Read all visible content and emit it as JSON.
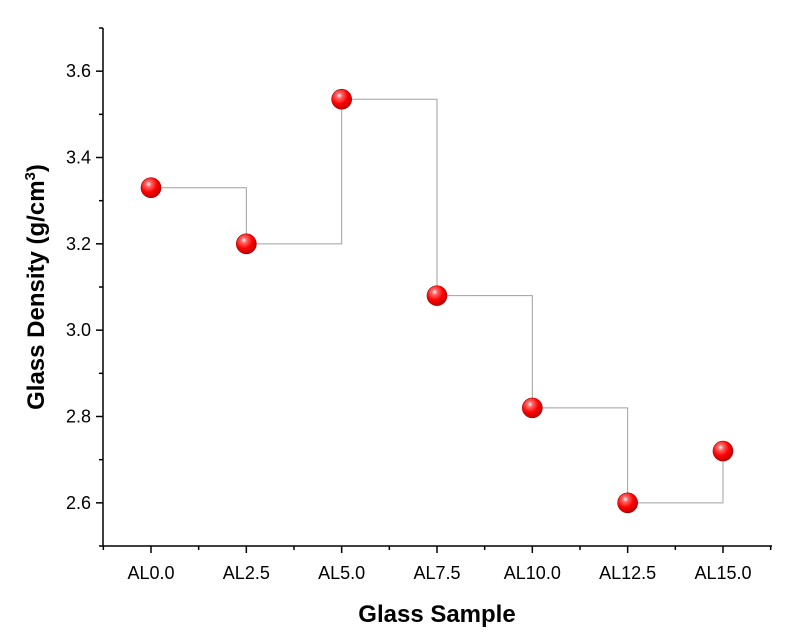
{
  "chart_data": {
    "type": "scatter",
    "categories": [
      "AL0.0",
      "AL2.5",
      "AL5.0",
      "AL7.5",
      "AL10.0",
      "AL12.5",
      "AL15.0"
    ],
    "values": [
      3.33,
      3.2,
      3.535,
      3.08,
      2.82,
      2.6,
      2.72
    ],
    "step_line": true,
    "xlabel": "Glass Sample",
    "ylabel_main": "Glass Density (g/cm",
    "ylabel_sup": "3",
    "ylabel_close": ")",
    "ylim": [
      2.5,
      3.7
    ],
    "yticks": [
      "2.6",
      "2.8",
      "3.0",
      "3.2",
      "3.4",
      "3.6"
    ],
    "marker_color": "#ff0000",
    "line_color": "#a0a0a0",
    "grid": false,
    "legend": "none"
  }
}
